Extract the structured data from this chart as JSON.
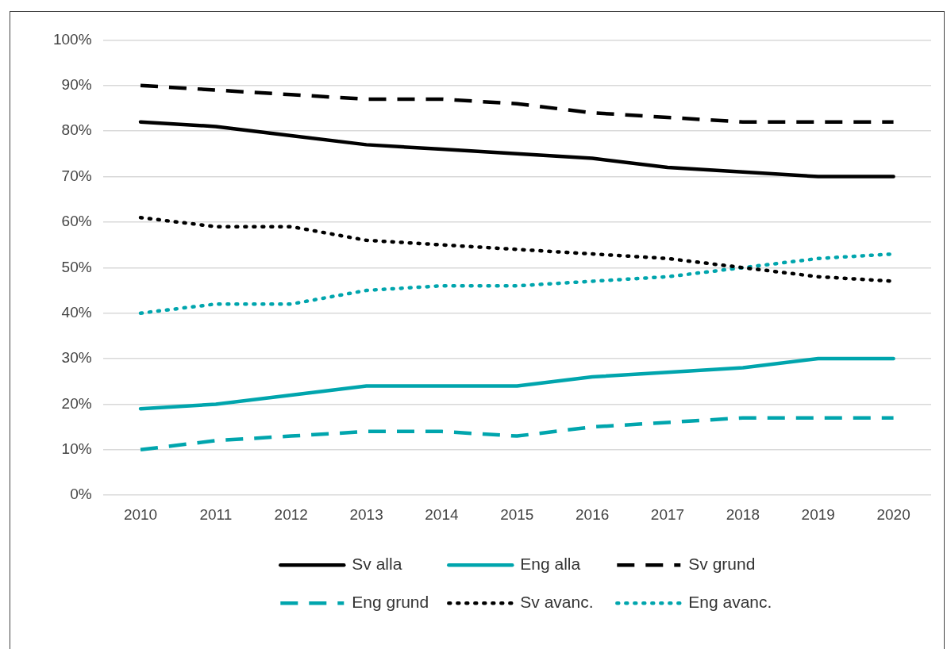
{
  "chart_data": {
    "type": "line",
    "categories": [
      "2010",
      "2011",
      "2012",
      "2013",
      "2014",
      "2015",
      "2016",
      "2017",
      "2018",
      "2019",
      "2020"
    ],
    "ylim": [
      0,
      100
    ],
    "yticks": [
      {
        "value": 0,
        "label": "0%"
      },
      {
        "value": 10,
        "label": "10%"
      },
      {
        "value": 20,
        "label": "20%"
      },
      {
        "value": 30,
        "label": "30%"
      },
      {
        "value": 40,
        "label": "40%"
      },
      {
        "value": 50,
        "label": "50%"
      },
      {
        "value": 60,
        "label": "60%"
      },
      {
        "value": 70,
        "label": "70%"
      },
      {
        "value": 80,
        "label": "80%"
      },
      {
        "value": 90,
        "label": "90%"
      },
      {
        "value": 100,
        "label": "100%"
      }
    ],
    "grid": "y",
    "legend": "bottom",
    "marker": "none",
    "series": [
      {
        "name": "Sv alla",
        "color": "#000000",
        "line_style": "solid",
        "values": [
          82,
          81,
          79,
          77,
          76,
          75,
          74,
          72,
          71,
          70,
          70
        ]
      },
      {
        "name": "Eng alla",
        "color": "#00a5ad",
        "line_style": "solid",
        "values": [
          19,
          20,
          22,
          24,
          24,
          24,
          26,
          27,
          28,
          30,
          30
        ]
      },
      {
        "name": "Sv grund",
        "color": "#000000",
        "line_style": "dashed",
        "values": [
          90,
          89,
          88,
          87,
          87,
          86,
          84,
          83,
          82,
          82,
          82
        ]
      },
      {
        "name": "Eng grund",
        "color": "#00a5ad",
        "line_style": "dashed",
        "values": [
          10,
          12,
          13,
          14,
          14,
          13,
          15,
          16,
          17,
          17,
          17
        ]
      },
      {
        "name": "Sv avanc.",
        "color": "#000000",
        "line_style": "dotted",
        "values": [
          61,
          59,
          59,
          56,
          55,
          54,
          53,
          52,
          50,
          48,
          47
        ]
      },
      {
        "name": "Eng avanc.",
        "color": "#00a5ad",
        "line_style": "dotted",
        "values": [
          40,
          42,
          42,
          45,
          46,
          46,
          47,
          48,
          50,
          52,
          53
        ]
      }
    ]
  }
}
